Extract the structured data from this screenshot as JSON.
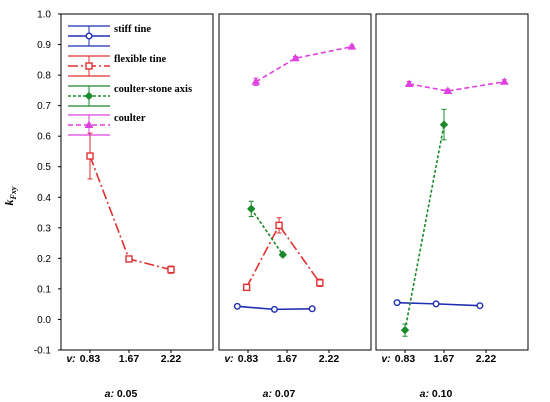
{
  "chart_data": {
    "type": "line",
    "ylabel": "k",
    "ylabel_sub": "Fxy",
    "ylim": [
      -0.1,
      1.0
    ],
    "y_ticks": [
      "-0.1",
      "0.0",
      "0.1",
      "0.2",
      "0.3",
      "0.4",
      "0.5",
      "0.6",
      "0.7",
      "0.8",
      "0.9",
      "1.0"
    ],
    "x_prefix": "v:",
    "x_ticks": [
      "0.83",
      "1.67",
      "2.22"
    ],
    "legend_placement": "top-left",
    "series_styles": [
      {
        "name": "stiff tine",
        "color": "#1f2fb0",
        "marker": "circle",
        "dash": ""
      },
      {
        "name": "flexible tine",
        "color": "#e03030",
        "marker": "square",
        "dash": "10,3,2,3"
      },
      {
        "name": "coulter-stone axis",
        "color": "#1a8a2a",
        "marker": "diamond",
        "dash": "3,2"
      },
      {
        "name": "coulter",
        "color": "#e040e0",
        "marker": "triangle",
        "dash": "5,3"
      }
    ],
    "panels": [
      {
        "a_prefix": "a:",
        "a_value": "0.05",
        "series": [
          {
            "name": "flexible tine",
            "points": [
              {
                "x": 0.83,
                "y": 0.535,
                "err": 0.075
              },
              {
                "x": 1.67,
                "y": 0.198,
                "err": 0.008
              },
              {
                "x": 2.22,
                "y": 0.163,
                "err": 0.012
              }
            ]
          }
        ]
      },
      {
        "a_prefix": "a:",
        "a_value": "0.07",
        "series": [
          {
            "name": "stiff tine",
            "points": [
              {
                "x": 0.6,
                "y": 0.043,
                "err": 0.004
              },
              {
                "x": 1.4,
                "y": 0.033,
                "err": 0.004
              },
              {
                "x": 2.0,
                "y": 0.035,
                "err": 0.004
              }
            ]
          },
          {
            "name": "flexible tine",
            "points": [
              {
                "x": 0.8,
                "y": 0.105,
                "err": 0.01
              },
              {
                "x": 1.5,
                "y": 0.308,
                "err": 0.025
              },
              {
                "x": 2.1,
                "y": 0.12,
                "err": 0.012
              }
            ]
          },
          {
            "name": "coulter-stone axis",
            "points": [
              {
                "x": 0.9,
                "y": 0.362,
                "err": 0.025
              },
              {
                "x": 1.58,
                "y": 0.212,
                "err": 0.005
              }
            ]
          },
          {
            "name": "coulter",
            "points": [
              {
                "x": 1.0,
                "y": 0.778,
                "err": 0.012
              },
              {
                "x": 1.78,
                "y": 0.855,
                "err": 0.006
              },
              {
                "x": 2.52,
                "y": 0.893,
                "err": 0.005
              }
            ]
          }
        ]
      },
      {
        "a_prefix": "a:",
        "a_value": "0.10",
        "series": [
          {
            "name": "stiff tine",
            "points": [
              {
                "x": 0.66,
                "y": 0.055,
                "err": 0.004
              },
              {
                "x": 1.5,
                "y": 0.051,
                "err": 0.004
              },
              {
                "x": 2.14,
                "y": 0.045,
                "err": 0.004
              }
            ]
          },
          {
            "name": "coulter-stone axis",
            "points": [
              {
                "x": 0.83,
                "y": -0.035,
                "err": 0.02
              },
              {
                "x": 1.67,
                "y": 0.638,
                "err": 0.05
              }
            ]
          },
          {
            "name": "coulter",
            "points": [
              {
                "x": 0.92,
                "y": 0.771,
                "err": 0.008
              },
              {
                "x": 1.72,
                "y": 0.748,
                "err": 0.006
              },
              {
                "x": 2.46,
                "y": 0.778,
                "err": 0.007
              }
            ]
          }
        ]
      }
    ]
  }
}
